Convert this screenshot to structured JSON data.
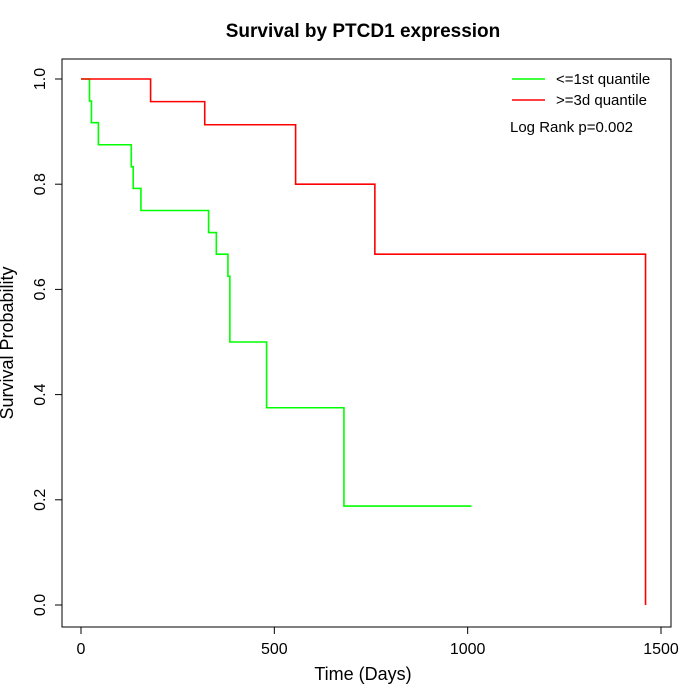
{
  "chart_data": {
    "type": "line",
    "step": true,
    "title": "Survival by PTCD1 expression",
    "xlabel": "Time (Days)",
    "ylabel": "Survival Probability",
    "xlim": [
      0,
      1500
    ],
    "ylim": [
      0,
      1
    ],
    "x_ticks": [
      "0",
      "500",
      "1000",
      "1500"
    ],
    "y_ticks": [
      "0.0",
      "0.2",
      "0.4",
      "0.6",
      "0.8",
      "1.0"
    ],
    "grid": false,
    "legend_position": "top-right",
    "annotation": "Log Rank p=0.002",
    "series": [
      {
        "name": "<=1st quantile",
        "color": "#00ff00",
        "x": [
          0,
          22,
          27,
          45,
          130,
          135,
          155,
          330,
          350,
          380,
          385,
          480,
          680,
          1010
        ],
        "y": [
          1.0,
          0.958,
          0.917,
          0.875,
          0.833,
          0.792,
          0.75,
          0.708,
          0.667,
          0.625,
          0.5,
          0.375,
          0.188,
          0.188
        ]
      },
      {
        "name": ">=3d quantile",
        "color": "#ff0000",
        "x": [
          0,
          180,
          320,
          555,
          760,
          1460
        ],
        "y": [
          1.0,
          0.957,
          0.913,
          0.8,
          0.667,
          0.0
        ]
      }
    ]
  }
}
